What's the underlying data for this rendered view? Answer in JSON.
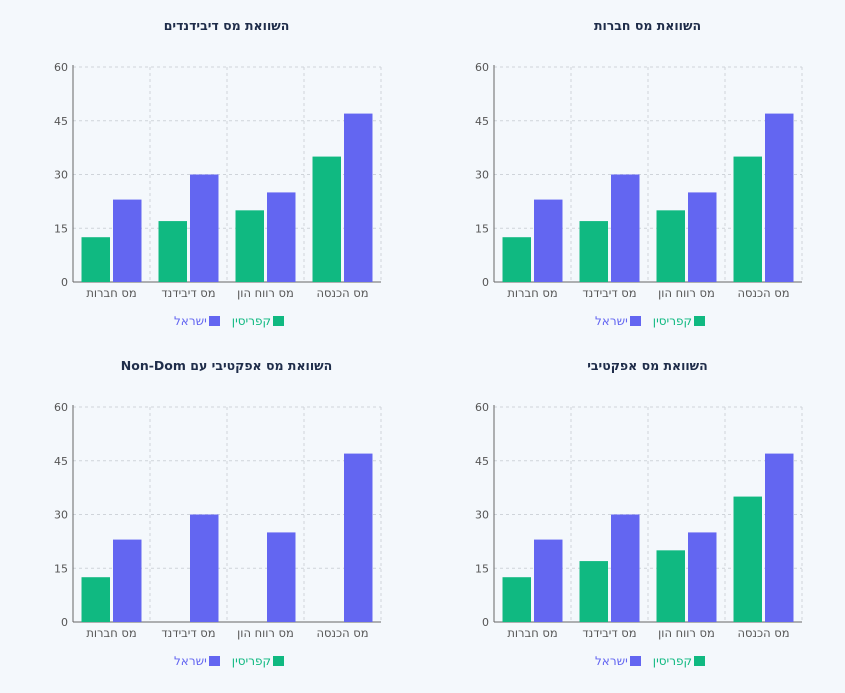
{
  "colors": {
    "cyprus": "#10b981",
    "israel": "#6366f1"
  },
  "chart_data": [
    {
      "type": "bar",
      "title": "השוואת מס חברות",
      "categories": [
        "מס חברות",
        "מס דיבידנד",
        "מס רווח הון",
        "מס הכנסה"
      ],
      "series": [
        {
          "name": "קפריסין",
          "values": [
            12.5,
            17,
            20,
            35
          ]
        },
        {
          "name": "ישראל",
          "values": [
            23,
            30,
            25,
            47
          ]
        }
      ],
      "yticks": [
        0,
        15,
        30,
        45,
        60
      ],
      "ylim": [
        0,
        60
      ],
      "grid": true,
      "legend": "bottom"
    },
    {
      "type": "bar",
      "title": "השוואת מס דיבידנדים",
      "categories": [
        "מס חברות",
        "מס דיבידנד",
        "מס רווח הון",
        "מס הכנסה"
      ],
      "series": [
        {
          "name": "קפריסין",
          "values": [
            12.5,
            17,
            20,
            35
          ]
        },
        {
          "name": "ישראל",
          "values": [
            23,
            30,
            25,
            47
          ]
        }
      ],
      "yticks": [
        0,
        15,
        30,
        45,
        60
      ],
      "ylim": [
        0,
        60
      ],
      "grid": true,
      "legend": "bottom"
    },
    {
      "type": "bar",
      "title": "השוואת מס אפקטיבי",
      "categories": [
        "מס חברות",
        "מס דיבידנד",
        "מס רווח הון",
        "מס הכנסה"
      ],
      "series": [
        {
          "name": "קפריסין",
          "values": [
            12.5,
            17,
            20,
            35
          ]
        },
        {
          "name": "ישראל",
          "values": [
            23,
            30,
            25,
            47
          ]
        }
      ],
      "yticks": [
        0,
        15,
        30,
        45,
        60
      ],
      "ylim": [
        0,
        60
      ],
      "grid": true,
      "legend": "bottom"
    },
    {
      "type": "bar",
      "title": "השוואת מס אפקטיבי עם Non-Dom",
      "categories": [
        "מס חברות",
        "מס דיבידנד",
        "מס רווח הון",
        "מס הכנסה"
      ],
      "series": [
        {
          "name": "קפריסין",
          "values": [
            12.5,
            0,
            0,
            0
          ]
        },
        {
          "name": "ישראל",
          "values": [
            23,
            30,
            25,
            47
          ]
        }
      ],
      "yticks": [
        0,
        15,
        30,
        45,
        60
      ],
      "ylim": [
        0,
        60
      ],
      "grid": true,
      "legend": "bottom"
    }
  ]
}
